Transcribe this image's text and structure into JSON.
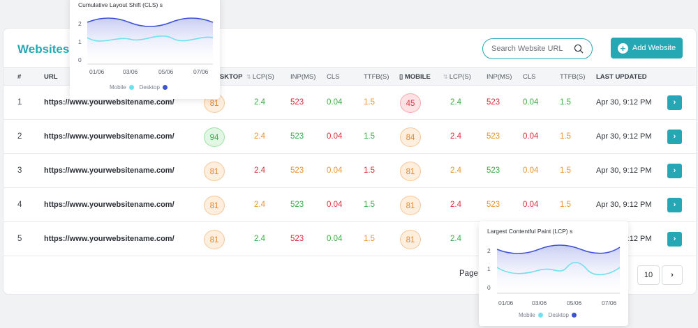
{
  "header": {
    "title": "Websites",
    "search_placeholder": "Search Website URL",
    "add_button": "Add Website"
  },
  "columns": {
    "num": "#",
    "url": "URL",
    "desktop": "DESKTOP",
    "lcp": "LCP(S)",
    "inp": "INP(MS)",
    "cls": "CLS",
    "ttfb": "TTFB(S)",
    "mobile": "MOBILE",
    "lcp_m": "LCP(S)",
    "inp_m": "INP(MS)",
    "cls_m": "CLS",
    "ttfb_m": "TTFB(S)",
    "updated": "LAST UPDATED"
  },
  "rows": [
    {
      "num": "1",
      "url": "https://www.yourwebsitename.com/",
      "desktop": "81",
      "lcp": "2.4",
      "inp": "523",
      "cls": "0.04",
      "ttfb": "1.5",
      "mobile": "45",
      "lcp_m": "2.4",
      "inp_m": "523",
      "cls_m": "0.04",
      "ttfb_m": "1.5",
      "updated": "Apr 30, 9:12 PM"
    },
    {
      "num": "2",
      "url": "https://www.yourwebsitename.com/",
      "desktop": "94",
      "lcp": "2.4",
      "inp": "523",
      "cls": "0.04",
      "ttfb": "1.5",
      "mobile": "84",
      "lcp_m": "2.4",
      "inp_m": "523",
      "cls_m": "0.04",
      "ttfb_m": "1.5",
      "updated": "Apr 30, 9:12 PM"
    },
    {
      "num": "3",
      "url": "https://www.yourwebsitename.com/",
      "desktop": "81",
      "lcp": "2.4",
      "inp": "523",
      "cls": "0.04",
      "ttfb": "1.5",
      "mobile": "81",
      "lcp_m": "2.4",
      "inp_m": "523",
      "cls_m": "0.04",
      "ttfb_m": "1.5",
      "updated": "Apr 30, 9:12 PM"
    },
    {
      "num": "4",
      "url": "https://www.yourwebsitename.com/",
      "desktop": "81",
      "lcp": "2.4",
      "inp": "523",
      "cls": "0.04",
      "ttfb": "1.5",
      "mobile": "81",
      "lcp_m": "2.4",
      "inp_m": "523",
      "cls_m": "0.04",
      "ttfb_m": "1.5",
      "updated": "Apr 30, 9:12 PM"
    },
    {
      "num": "5",
      "url": "https://www.yourwebsitename.com/",
      "desktop": "81",
      "lcp": "2.4",
      "inp": "523",
      "cls": "0.04",
      "ttfb": "1.5",
      "mobile": "81",
      "lcp_m": "2.4",
      "updated": "Apr 30, 9:12 PM"
    }
  ],
  "pagination": {
    "label": "Page",
    "page_size": "10"
  },
  "popup_cls": {
    "title": "Cumulative Layout Shift (CLS) s",
    "y_ticks": [
      "2",
      "1",
      "0"
    ],
    "x_ticks": [
      "01/06",
      "03/06",
      "05/06",
      "07/06"
    ],
    "legend_mobile": "Mobile",
    "legend_desktop": "Desktop"
  },
  "popup_lcp": {
    "title": "Largest Contentful Paint (LCP) s",
    "y_ticks": [
      "2",
      "1",
      "0"
    ],
    "x_ticks": [
      "01/06",
      "03/06",
      "05/06",
      "07/06"
    ],
    "legend_mobile": "Mobile",
    "legend_desktop": "Desktop"
  },
  "colors": {
    "accent": "#25a7b4",
    "mobile_series": "#6fe0ee",
    "desktop_series": "#3d52d5"
  }
}
